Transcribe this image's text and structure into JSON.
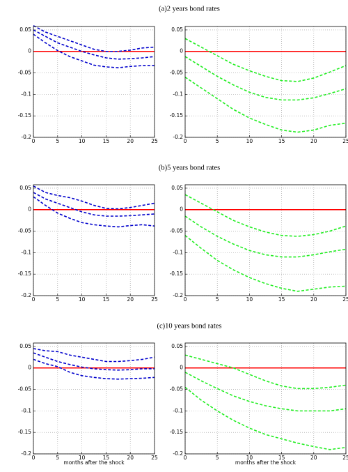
{
  "section_titles": [
    "(a)2 years bond rates",
    "(b)5 years bond rates",
    "(c)10 years bond rates"
  ],
  "chart_data": [
    {
      "type": "line",
      "x": [
        0,
        2.5,
        5,
        7.5,
        10,
        12.5,
        15,
        17.5,
        20,
        22.5,
        25
      ],
      "xlim": [
        0,
        25
      ],
      "ylim": [
        -0.2,
        0.058
      ],
      "xticks": [
        0,
        5,
        10,
        15,
        20,
        25
      ],
      "yticks": [
        -0.2,
        -0.15,
        -0.1,
        -0.05,
        0,
        0.05
      ],
      "grid": true,
      "hline": 0,
      "hline_color": "#ff0000",
      "series": [
        {
          "color": "#0000cc",
          "values": [
            0.06,
            0.045,
            0.035,
            0.025,
            0.015,
            0.005,
            0,
            0,
            0.003,
            0.008,
            0.01
          ]
        },
        {
          "color": "#0000cc",
          "values": [
            0.05,
            0.035,
            0.02,
            0.01,
            0,
            -0.008,
            -0.015,
            -0.018,
            -0.017,
            -0.015,
            -0.012
          ]
        },
        {
          "color": "#0000cc",
          "values": [
            0.04,
            0.02,
            0.002,
            -0.012,
            -0.022,
            -0.032,
            -0.036,
            -0.038,
            -0.035,
            -0.033,
            -0.033
          ]
        }
      ]
    },
    {
      "type": "line",
      "x": [
        0,
        2.5,
        5,
        7.5,
        10,
        12.5,
        15,
        17.5,
        20,
        22.5,
        25
      ],
      "xlim": [
        0,
        25
      ],
      "ylim": [
        -0.2,
        0.058
      ],
      "xticks": [
        0,
        5,
        10,
        15,
        20,
        25
      ],
      "yticks": [
        -0.2,
        -0.15,
        -0.1,
        -0.05,
        0,
        0.05
      ],
      "grid": true,
      "hline": 0,
      "hline_color": "#ff0000",
      "series": [
        {
          "color": "#22ee22",
          "values": [
            0.03,
            0.01,
            -0.01,
            -0.03,
            -0.045,
            -0.058,
            -0.068,
            -0.07,
            -0.062,
            -0.048,
            -0.033
          ]
        },
        {
          "color": "#22ee22",
          "values": [
            -0.012,
            -0.035,
            -0.058,
            -0.078,
            -0.095,
            -0.107,
            -0.113,
            -0.113,
            -0.108,
            -0.098,
            -0.087
          ]
        },
        {
          "color": "#22ee22",
          "values": [
            -0.06,
            -0.085,
            -0.11,
            -0.135,
            -0.155,
            -0.17,
            -0.183,
            -0.188,
            -0.183,
            -0.172,
            -0.167
          ]
        }
      ]
    },
    {
      "type": "line",
      "x": [
        0,
        2.5,
        5,
        7.5,
        10,
        12.5,
        15,
        17.5,
        20,
        22.5,
        25
      ],
      "xlim": [
        0,
        25
      ],
      "ylim": [
        -0.2,
        0.058
      ],
      "xticks": [
        0,
        5,
        10,
        15,
        20,
        25
      ],
      "yticks": [
        -0.2,
        -0.15,
        -0.1,
        -0.05,
        0,
        0.05
      ],
      "grid": true,
      "hline": 0,
      "hline_color": "#ff0000",
      "series": [
        {
          "color": "#0000cc",
          "values": [
            0.055,
            0.04,
            0.033,
            0.028,
            0.02,
            0.01,
            0.003,
            0.002,
            0.005,
            0.01,
            0.015
          ]
        },
        {
          "color": "#0000cc",
          "values": [
            0.04,
            0.025,
            0.015,
            0.005,
            -0.005,
            -0.012,
            -0.015,
            -0.015,
            -0.014,
            -0.012,
            -0.01
          ]
        },
        {
          "color": "#0000cc",
          "values": [
            0.03,
            0.01,
            -0.008,
            -0.02,
            -0.03,
            -0.035,
            -0.038,
            -0.04,
            -0.037,
            -0.035,
            -0.038
          ]
        }
      ]
    },
    {
      "type": "line",
      "x": [
        0,
        2.5,
        5,
        7.5,
        10,
        12.5,
        15,
        17.5,
        20,
        22.5,
        25
      ],
      "xlim": [
        0,
        25
      ],
      "ylim": [
        -0.2,
        0.058
      ],
      "xticks": [
        0,
        5,
        10,
        15,
        20,
        25
      ],
      "yticks": [
        -0.2,
        -0.15,
        -0.1,
        -0.05,
        0,
        0.05
      ],
      "grid": true,
      "hline": 0,
      "hline_color": "#ff0000",
      "series": [
        {
          "color": "#22ee22",
          "values": [
            0.035,
            0.015,
            -0.005,
            -0.025,
            -0.04,
            -0.052,
            -0.06,
            -0.062,
            -0.058,
            -0.05,
            -0.038
          ]
        },
        {
          "color": "#22ee22",
          "values": [
            -0.015,
            -0.04,
            -0.062,
            -0.08,
            -0.095,
            -0.105,
            -0.11,
            -0.11,
            -0.105,
            -0.098,
            -0.092
          ]
        },
        {
          "color": "#22ee22",
          "values": [
            -0.06,
            -0.09,
            -0.118,
            -0.14,
            -0.158,
            -0.172,
            -0.183,
            -0.19,
            -0.185,
            -0.18,
            -0.178
          ]
        }
      ]
    },
    {
      "type": "line",
      "x": [
        0,
        2.5,
        5,
        7.5,
        10,
        12.5,
        15,
        17.5,
        20,
        22.5,
        25
      ],
      "xlim": [
        0,
        25
      ],
      "ylim": [
        -0.2,
        0.058
      ],
      "xticks": [
        0,
        5,
        10,
        15,
        20,
        25
      ],
      "yticks": [
        -0.2,
        -0.15,
        -0.1,
        -0.05,
        0,
        0.05
      ],
      "grid": true,
      "hline": 0,
      "hline_color": "#ff0000",
      "xlabel": "months after the shock",
      "series": [
        {
          "color": "#0000cc",
          "values": [
            0.045,
            0.04,
            0.038,
            0.03,
            0.025,
            0.02,
            0.015,
            0.015,
            0.017,
            0.02,
            0.025
          ]
        },
        {
          "color": "#0000cc",
          "values": [
            0.035,
            0.025,
            0.015,
            0.008,
            0.002,
            -0.002,
            -0.004,
            -0.005,
            -0.004,
            -0.002,
            -0.002
          ]
        },
        {
          "color": "#0000cc",
          "values": [
            0.02,
            0.01,
            0.003,
            -0.01,
            -0.018,
            -0.022,
            -0.025,
            -0.026,
            -0.025,
            -0.024,
            -0.022
          ]
        }
      ]
    },
    {
      "type": "line",
      "x": [
        0,
        2.5,
        5,
        7.5,
        10,
        12.5,
        15,
        17.5,
        20,
        22.5,
        25
      ],
      "xlim": [
        0,
        25
      ],
      "ylim": [
        -0.2,
        0.058
      ],
      "xticks": [
        0,
        5,
        10,
        15,
        20,
        25
      ],
      "yticks": [
        -0.2,
        -0.15,
        -0.1,
        -0.05,
        0,
        0.05
      ],
      "grid": true,
      "hline": 0,
      "hline_color": "#ff0000",
      "xlabel": "months after the shock",
      "series": [
        {
          "color": "#22ee22",
          "values": [
            0.03,
            0.02,
            0.01,
            0,
            -0.015,
            -0.03,
            -0.042,
            -0.048,
            -0.048,
            -0.045,
            -0.04
          ]
        },
        {
          "color": "#22ee22",
          "values": [
            -0.01,
            -0.03,
            -0.048,
            -0.065,
            -0.078,
            -0.088,
            -0.095,
            -0.1,
            -0.1,
            -0.1,
            -0.095
          ]
        },
        {
          "color": "#22ee22",
          "values": [
            -0.045,
            -0.075,
            -0.1,
            -0.122,
            -0.14,
            -0.155,
            -0.165,
            -0.175,
            -0.183,
            -0.19,
            -0.185
          ]
        }
      ]
    }
  ]
}
